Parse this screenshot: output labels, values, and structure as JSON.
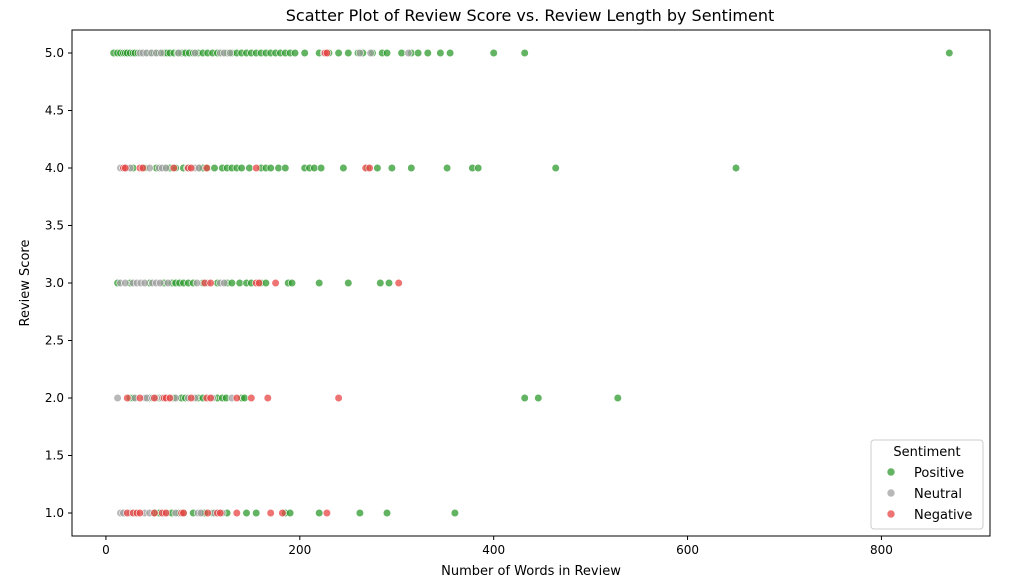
{
  "chart_data": {
    "type": "scatter",
    "title": "Scatter Plot of Review Score vs. Review Length by Sentiment",
    "xlabel": "Number of Words in Review",
    "ylabel": "Review Score",
    "xlim": [
      -35,
      912
    ],
    "ylim": [
      0.8,
      5.2
    ],
    "x_ticks": [
      0,
      200,
      400,
      600,
      800
    ],
    "y_ticks": [
      1.0,
      1.5,
      2.0,
      2.5,
      3.0,
      3.5,
      4.0,
      4.5,
      5.0
    ],
    "grid": false,
    "legend": {
      "title": "Sentiment",
      "position": "lower-right"
    },
    "series": [
      {
        "name": "Positive",
        "color": "#2e9a2e",
        "points": [
          [
            8,
            5
          ],
          [
            12,
            5
          ],
          [
            15,
            5
          ],
          [
            18,
            5
          ],
          [
            20,
            5
          ],
          [
            22,
            5
          ],
          [
            25,
            5
          ],
          [
            28,
            5
          ],
          [
            30,
            5
          ],
          [
            33,
            5
          ],
          [
            36,
            5
          ],
          [
            40,
            5
          ],
          [
            45,
            5
          ],
          [
            50,
            5
          ],
          [
            55,
            5
          ],
          [
            60,
            5
          ],
          [
            63,
            5
          ],
          [
            66,
            5
          ],
          [
            70,
            5
          ],
          [
            74,
            5
          ],
          [
            78,
            5
          ],
          [
            82,
            5
          ],
          [
            86,
            5
          ],
          [
            90,
            5
          ],
          [
            95,
            5
          ],
          [
            100,
            5
          ],
          [
            105,
            5
          ],
          [
            110,
            5
          ],
          [
            115,
            5
          ],
          [
            120,
            5
          ],
          [
            125,
            5
          ],
          [
            130,
            5
          ],
          [
            135,
            5
          ],
          [
            140,
            5
          ],
          [
            145,
            5
          ],
          [
            150,
            5
          ],
          [
            155,
            5
          ],
          [
            160,
            5
          ],
          [
            165,
            5
          ],
          [
            170,
            5
          ],
          [
            175,
            5
          ],
          [
            180,
            5
          ],
          [
            185,
            5
          ],
          [
            190,
            5
          ],
          [
            195,
            5
          ],
          [
            205,
            5
          ],
          [
            220,
            5
          ],
          [
            230,
            5
          ],
          [
            240,
            5
          ],
          [
            250,
            5
          ],
          [
            260,
            5
          ],
          [
            265,
            5
          ],
          [
            275,
            5
          ],
          [
            285,
            5
          ],
          [
            290,
            5
          ],
          [
            305,
            5
          ],
          [
            315,
            5
          ],
          [
            322,
            5
          ],
          [
            332,
            5
          ],
          [
            345,
            5
          ],
          [
            355,
            5
          ],
          [
            400,
            5
          ],
          [
            432,
            5
          ],
          [
            870,
            5
          ],
          [
            28,
            4
          ],
          [
            40,
            4
          ],
          [
            52,
            4
          ],
          [
            60,
            4
          ],
          [
            66,
            4
          ],
          [
            72,
            4
          ],
          [
            80,
            4
          ],
          [
            96,
            4
          ],
          [
            100,
            4
          ],
          [
            105,
            4
          ],
          [
            112,
            4
          ],
          [
            120,
            4
          ],
          [
            125,
            4
          ],
          [
            130,
            4
          ],
          [
            135,
            4
          ],
          [
            140,
            4
          ],
          [
            148,
            4
          ],
          [
            160,
            4
          ],
          [
            165,
            4
          ],
          [
            170,
            4
          ],
          [
            178,
            4
          ],
          [
            185,
            4
          ],
          [
            205,
            4
          ],
          [
            210,
            4
          ],
          [
            215,
            4
          ],
          [
            222,
            4
          ],
          [
            245,
            4
          ],
          [
            270,
            4
          ],
          [
            280,
            4
          ],
          [
            295,
            4
          ],
          [
            315,
            4
          ],
          [
            352,
            4
          ],
          [
            378,
            4
          ],
          [
            384,
            4
          ],
          [
            464,
            4
          ],
          [
            650,
            4
          ],
          [
            12,
            3
          ],
          [
            25,
            3
          ],
          [
            45,
            3
          ],
          [
            60,
            3
          ],
          [
            68,
            3
          ],
          [
            72,
            3
          ],
          [
            76,
            3
          ],
          [
            80,
            3
          ],
          [
            85,
            3
          ],
          [
            90,
            3
          ],
          [
            100,
            3
          ],
          [
            115,
            3
          ],
          [
            125,
            3
          ],
          [
            130,
            3
          ],
          [
            138,
            3
          ],
          [
            145,
            3
          ],
          [
            150,
            3
          ],
          [
            160,
            3
          ],
          [
            165,
            3
          ],
          [
            188,
            3
          ],
          [
            192,
            3
          ],
          [
            220,
            3
          ],
          [
            250,
            3
          ],
          [
            283,
            3
          ],
          [
            292,
            3
          ],
          [
            25,
            2
          ],
          [
            28,
            2
          ],
          [
            45,
            2
          ],
          [
            55,
            2
          ],
          [
            70,
            2
          ],
          [
            78,
            2
          ],
          [
            82,
            2
          ],
          [
            95,
            2
          ],
          [
            100,
            2
          ],
          [
            115,
            2
          ],
          [
            120,
            2
          ],
          [
            124,
            2
          ],
          [
            140,
            2
          ],
          [
            143,
            2
          ],
          [
            432,
            2
          ],
          [
            446,
            2
          ],
          [
            528,
            2
          ],
          [
            30,
            1
          ],
          [
            50,
            1
          ],
          [
            55,
            1
          ],
          [
            63,
            1
          ],
          [
            68,
            1
          ],
          [
            75,
            1
          ],
          [
            80,
            1
          ],
          [
            90,
            1
          ],
          [
            100,
            1
          ],
          [
            102,
            1
          ],
          [
            110,
            1
          ],
          [
            125,
            1
          ],
          [
            145,
            1
          ],
          [
            155,
            1
          ],
          [
            185,
            1
          ],
          [
            190,
            1
          ],
          [
            220,
            1
          ],
          [
            262,
            1
          ],
          [
            290,
            1
          ],
          [
            360,
            1
          ]
        ]
      },
      {
        "name": "Neutral",
        "color": "#a0a0a0",
        "points": [
          [
            35,
            5
          ],
          [
            38,
            5
          ],
          [
            42,
            5
          ],
          [
            47,
            5
          ],
          [
            52,
            5
          ],
          [
            57,
            5
          ],
          [
            75,
            5
          ],
          [
            92,
            5
          ],
          [
            118,
            5
          ],
          [
            122,
            5
          ],
          [
            128,
            5
          ],
          [
            225,
            5
          ],
          [
            262,
            5
          ],
          [
            273,
            5
          ],
          [
            312,
            5
          ],
          [
            15,
            4
          ],
          [
            18,
            4
          ],
          [
            22,
            4
          ],
          [
            25,
            4
          ],
          [
            45,
            4
          ],
          [
            55,
            4
          ],
          [
            58,
            4
          ],
          [
            62,
            4
          ],
          [
            84,
            4
          ],
          [
            92,
            4
          ],
          [
            96,
            4
          ],
          [
            15,
            3
          ],
          [
            20,
            3
          ],
          [
            28,
            3
          ],
          [
            32,
            3
          ],
          [
            36,
            3
          ],
          [
            40,
            3
          ],
          [
            48,
            3
          ],
          [
            52,
            3
          ],
          [
            56,
            3
          ],
          [
            64,
            3
          ],
          [
            94,
            3
          ],
          [
            105,
            3
          ],
          [
            118,
            3
          ],
          [
            122,
            3
          ],
          [
            12,
            2
          ],
          [
            30,
            2
          ],
          [
            40,
            2
          ],
          [
            42,
            2
          ],
          [
            48,
            2
          ],
          [
            52,
            2
          ],
          [
            58,
            2
          ],
          [
            65,
            2
          ],
          [
            72,
            2
          ],
          [
            85,
            2
          ],
          [
            92,
            2
          ],
          [
            110,
            2
          ],
          [
            130,
            2
          ],
          [
            15,
            1
          ],
          [
            18,
            1
          ],
          [
            25,
            1
          ],
          [
            40,
            1
          ],
          [
            45,
            1
          ],
          [
            60,
            1
          ],
          [
            72,
            1
          ],
          [
            95,
            1
          ],
          [
            98,
            1
          ],
          [
            112,
            1
          ],
          [
            120,
            1
          ]
        ]
      },
      {
        "name": "Negative",
        "color": "#e84545",
        "points": [
          [
            226,
            5
          ],
          [
            228,
            5
          ],
          [
            18,
            4
          ],
          [
            20,
            4
          ],
          [
            35,
            4
          ],
          [
            38,
            4
          ],
          [
            70,
            4
          ],
          [
            85,
            4
          ],
          [
            88,
            4
          ],
          [
            104,
            4
          ],
          [
            155,
            4
          ],
          [
            268,
            4
          ],
          [
            272,
            4
          ],
          [
            102,
            3
          ],
          [
            108,
            3
          ],
          [
            155,
            3
          ],
          [
            158,
            3
          ],
          [
            175,
            3
          ],
          [
            302,
            3
          ],
          [
            22,
            2
          ],
          [
            35,
            2
          ],
          [
            50,
            2
          ],
          [
            60,
            2
          ],
          [
            62,
            2
          ],
          [
            66,
            2
          ],
          [
            88,
            2
          ],
          [
            104,
            2
          ],
          [
            108,
            2
          ],
          [
            135,
            2
          ],
          [
            150,
            2
          ],
          [
            167,
            2
          ],
          [
            240,
            2
          ],
          [
            22,
            1
          ],
          [
            28,
            1
          ],
          [
            32,
            1
          ],
          [
            35,
            1
          ],
          [
            50,
            1
          ],
          [
            58,
            1
          ],
          [
            62,
            1
          ],
          [
            78,
            1
          ],
          [
            80,
            1
          ],
          [
            105,
            1
          ],
          [
            115,
            1
          ],
          [
            118,
            1
          ],
          [
            135,
            1
          ],
          [
            170,
            1
          ],
          [
            182,
            1
          ],
          [
            228,
            1
          ]
        ]
      }
    ]
  }
}
